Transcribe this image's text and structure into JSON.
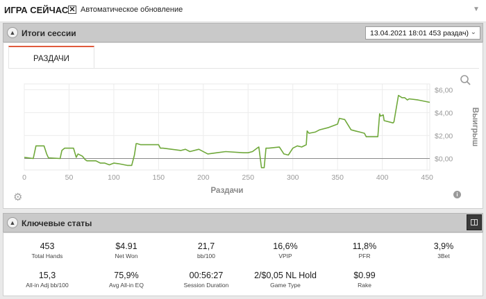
{
  "header": {
    "title": "ИГРА СЕЙЧАС",
    "auto_update_label": "Автоматическое обновление",
    "auto_update_checked": "✕",
    "menu_icon": "chevron-down-icon"
  },
  "session_panel": {
    "title": "Итоги сессии",
    "selected_session": "13.04.2021 18:01 453 раздач)",
    "tab_label": "РАЗДАЧИ"
  },
  "stats_panel": {
    "title": "Ключевые статы",
    "row1": [
      {
        "value": "453",
        "label": "Total Hands"
      },
      {
        "value": "$4.91",
        "label": "Net Won"
      },
      {
        "value": "21,7",
        "label": "bb/100"
      },
      {
        "value": "16,6%",
        "label": "VPIP"
      },
      {
        "value": "11,8%",
        "label": "PFR"
      },
      {
        "value": "3,9%",
        "label": "3Bet"
      }
    ],
    "row2": [
      {
        "value": "15,3",
        "label": "All-in Adj bb/100"
      },
      {
        "value": "75,9%",
        "label": "Avg All-in EQ"
      },
      {
        "value": "00:56:27",
        "label": "Session Duration"
      },
      {
        "value": "2/$0,05 NL Hold",
        "label": "Game Type"
      },
      {
        "value": "$0.99",
        "label": "Rake"
      }
    ]
  },
  "chart_data": {
    "type": "line",
    "xlabel": "Раздачи",
    "ylabel": "Выигрыш",
    "xlim": [
      0,
      453
    ],
    "ylim": [
      -1,
      6.5
    ],
    "x_ticks": [
      0,
      50,
      100,
      150,
      200,
      250,
      300,
      350,
      400,
      450
    ],
    "x_tick_labels": [
      "0",
      "50",
      "100",
      "150",
      "200",
      "250",
      "300",
      "350",
      "400",
      "450"
    ],
    "y_ticks": [
      0,
      2,
      4,
      6
    ],
    "y_tick_labels": [
      "$0,00",
      "$2,00",
      "$4,00",
      "$6,00"
    ],
    "line_color": "#6fa83a",
    "series": [
      {
        "x": [
          0,
          10,
          13,
          15,
          22,
          25,
          27,
          40,
          42,
          45,
          55,
          58,
          60,
          65,
          68,
          70,
          80,
          85,
          90,
          95,
          100,
          105,
          115,
          120,
          123,
          125,
          126,
          130,
          150,
          152,
          155,
          175,
          180,
          185,
          195,
          205,
          215,
          225,
          245,
          250,
          255,
          260,
          262,
          265,
          268,
          270,
          273,
          285,
          290,
          295,
          300,
          305,
          310,
          315,
          316,
          318,
          325,
          330,
          340,
          350,
          352,
          358,
          365,
          370,
          375,
          380,
          382,
          395,
          397,
          398,
          401,
          402,
          412,
          413,
          418,
          422,
          425,
          428,
          430,
          440,
          453
        ],
        "y": [
          0.1,
          0,
          1.1,
          1.1,
          1.1,
          0.4,
          0.05,
          0.0,
          0.7,
          0.9,
          0.9,
          0.1,
          0.4,
          0.2,
          -0.1,
          -0.2,
          -0.2,
          -0.4,
          -0.4,
          -0.55,
          -0.4,
          -0.45,
          -0.6,
          -0.6,
          0.3,
          1.3,
          1.3,
          1.2,
          1.2,
          0.9,
          0.9,
          0.7,
          0.8,
          0.6,
          0.8,
          0.4,
          0.5,
          0.6,
          0.5,
          0.5,
          0.6,
          0.9,
          1.0,
          -0.8,
          -0.8,
          0.9,
          0.9,
          1.0,
          0.4,
          0.3,
          0.9,
          1.1,
          1.0,
          1.2,
          2.4,
          2.2,
          2.3,
          2.5,
          2.7,
          3.0,
          3.5,
          3.4,
          2.5,
          2.4,
          2.3,
          2.2,
          1.9,
          1.9,
          3.9,
          3.7,
          3.8,
          3.3,
          3.1,
          3.2,
          5.5,
          5.3,
          5.3,
          5.1,
          5.2,
          5.1,
          4.9
        ]
      }
    ]
  }
}
